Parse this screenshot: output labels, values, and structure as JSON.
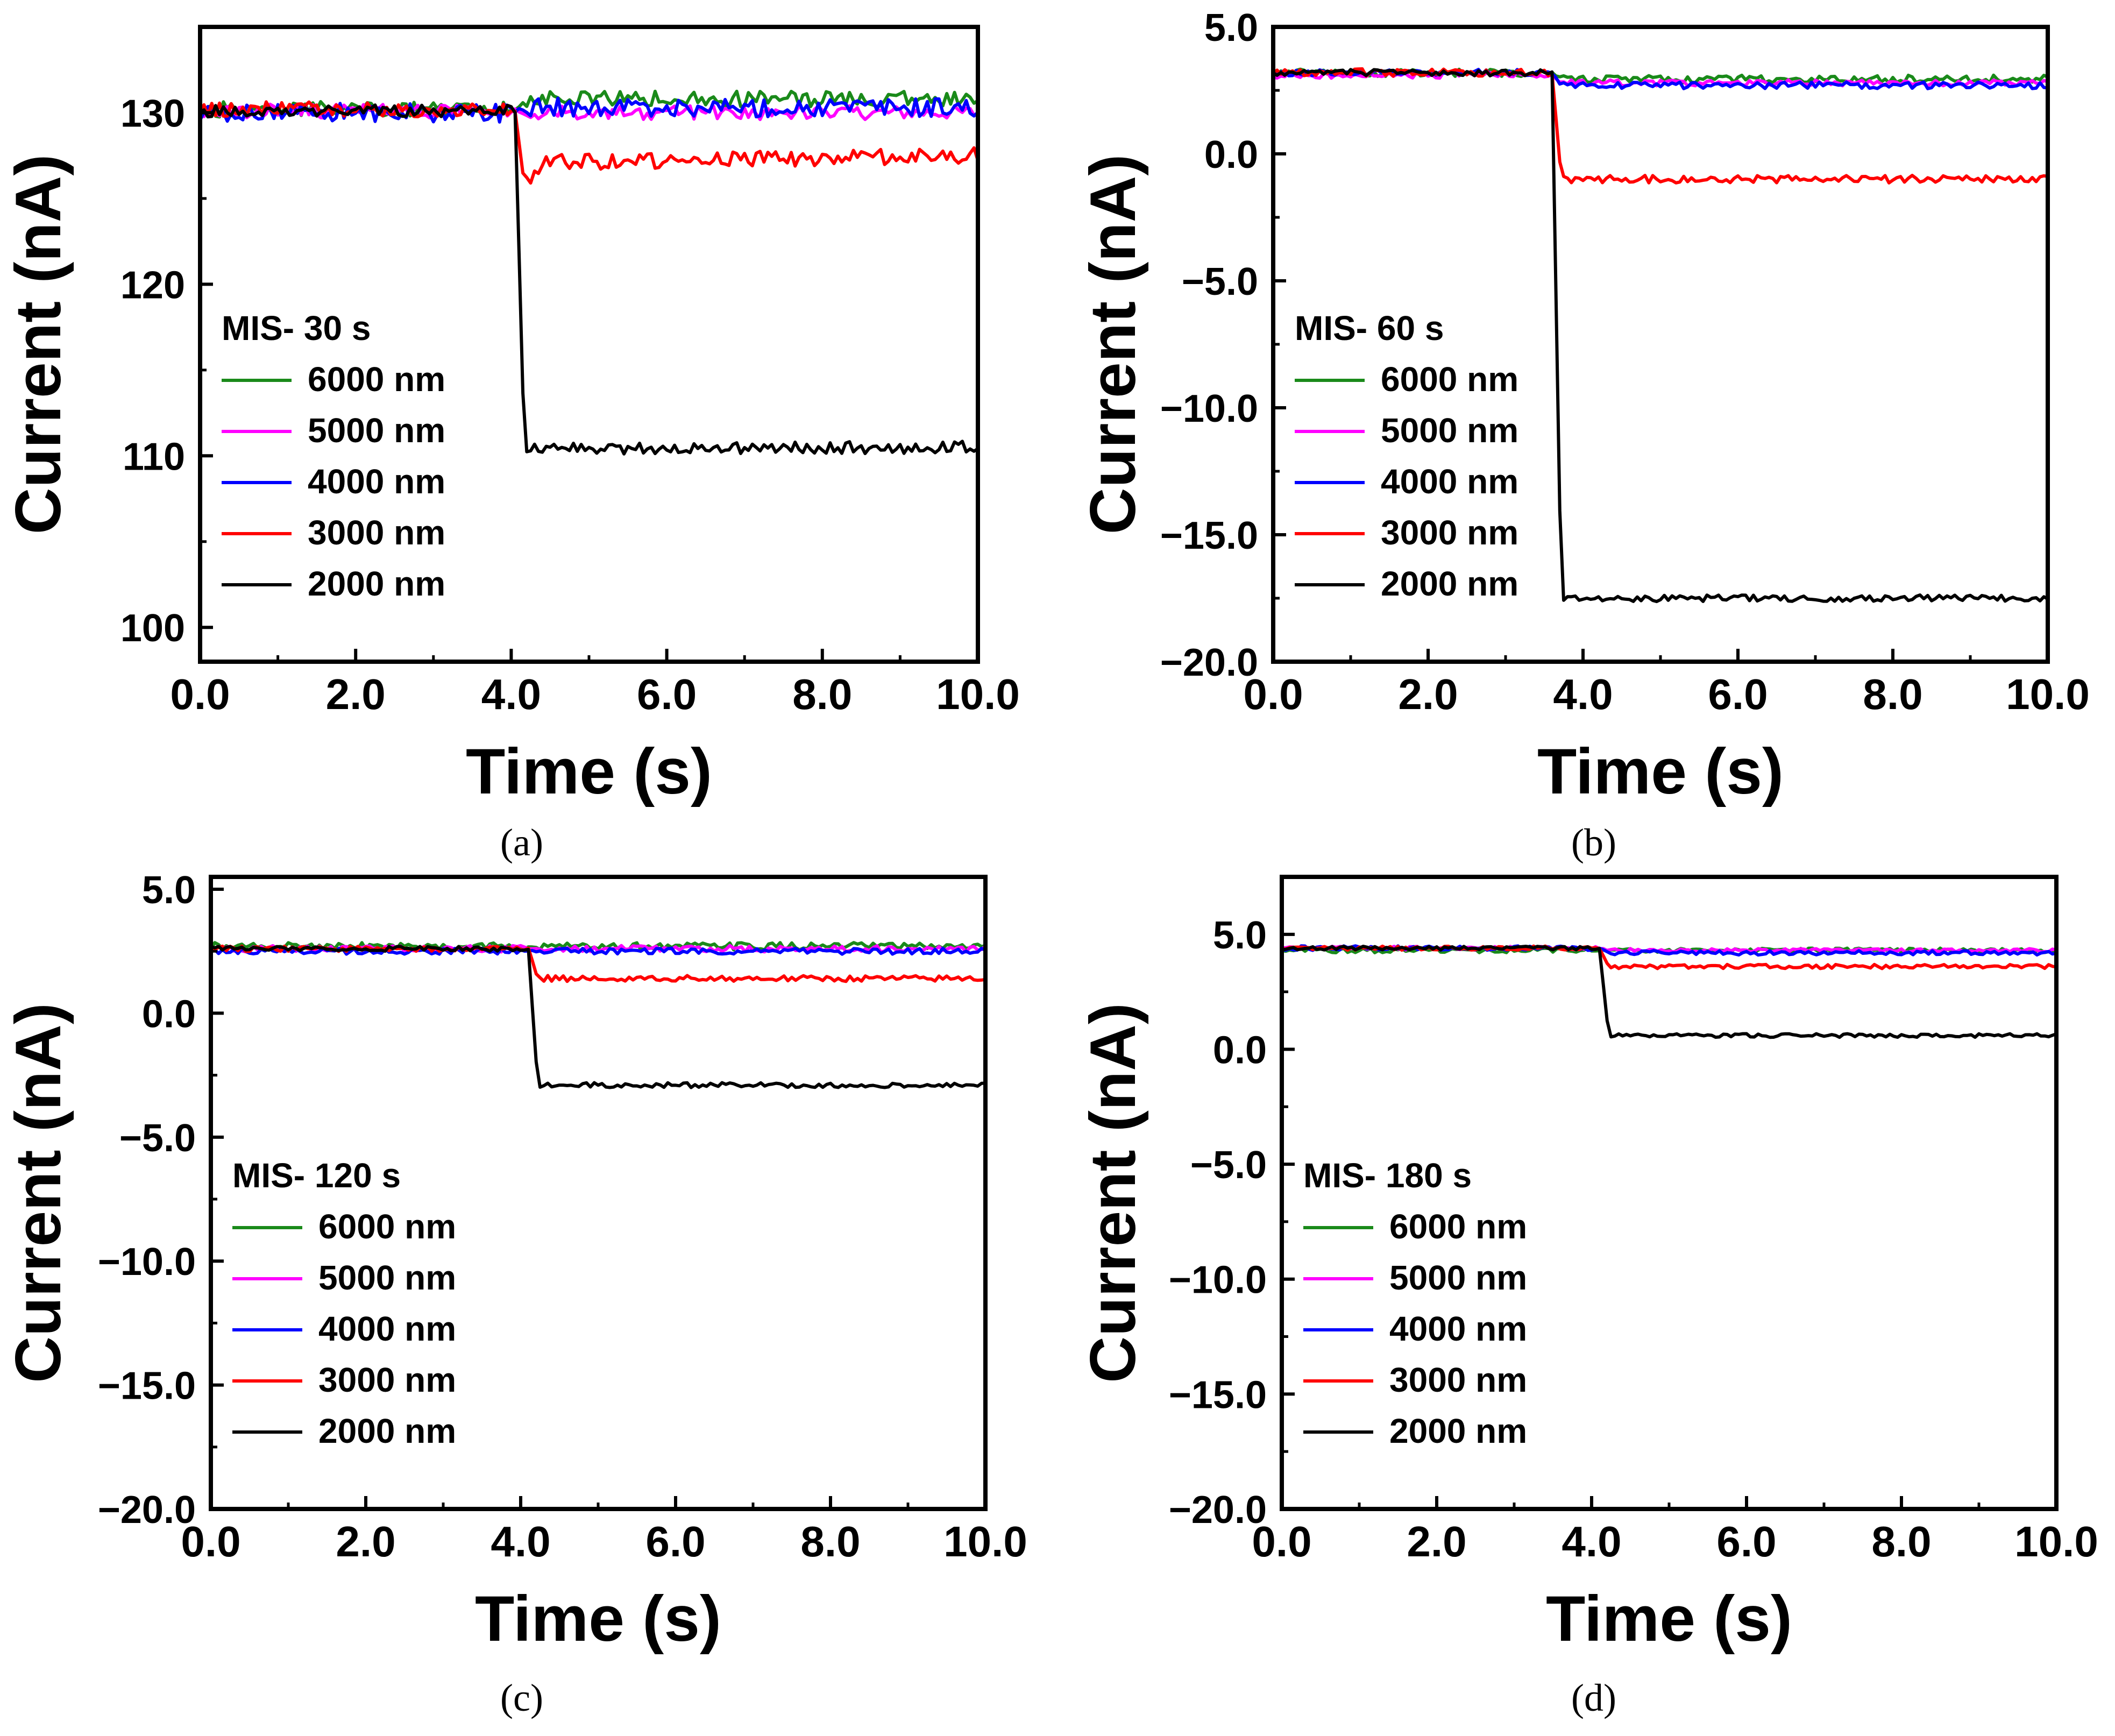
{
  "chart_data": [
    {
      "type": "line",
      "panel_label": "a",
      "xlabel": "Time (s)",
      "ylabel": "Current (nA)",
      "xlim": [
        0,
        10
      ],
      "ylim": [
        98,
        135
      ],
      "xticks": [
        0,
        2,
        4,
        6,
        8,
        10
      ],
      "xtick_labels": [
        "0.0",
        "2.0",
        "4.0",
        "6.0",
        "8.0",
        "10.0"
      ],
      "yticks": [
        100,
        110,
        120,
        130
      ],
      "ytick_labels": [
        "100",
        "110",
        "120",
        "130"
      ],
      "legend_title": "MIS- 30 s",
      "legend_location": "bottom-left",
      "step_time": 4.05,
      "series": [
        {
          "name": "6000 nm",
          "color": "#1a8a1a",
          "before": 130.2,
          "after": 130.8,
          "noise": 0.45,
          "seed": 11
        },
        {
          "name": "5000 nm",
          "color": "#ff00ff",
          "before": 130.1,
          "after": 130.0,
          "noise": 0.4,
          "seed": 23
        },
        {
          "name": "4000 nm",
          "color": "#0000ff",
          "before": 130.0,
          "after": 130.3,
          "noise": 0.55,
          "seed": 37
        },
        {
          "name": "3000 nm",
          "color": "#ff0000",
          "before": 130.2,
          "after": 127.1,
          "noise": 0.45,
          "seed": 41,
          "trend": 0.45,
          "dip": 125.8
        },
        {
          "name": "2000 nm",
          "color": "#000000",
          "before": 130.1,
          "after": 110.4,
          "noise": 0.35,
          "seed": 53,
          "trend": 0.12
        }
      ]
    },
    {
      "type": "line",
      "panel_label": "b",
      "xlabel": "Time (s)",
      "ylabel": "Current (nA)",
      "xlim": [
        0,
        10
      ],
      "ylim": [
        -20,
        5
      ],
      "xticks": [
        0,
        2,
        4,
        6,
        8,
        10
      ],
      "xtick_labels": [
        "0.0",
        "2.0",
        "4.0",
        "6.0",
        "8.0",
        "10.0"
      ],
      "yticks": [
        -20,
        -15,
        -10,
        -5,
        0,
        5
      ],
      "ytick_labels": [
        "−20.0",
        "−15.0",
        "−10.0",
        "−5.0",
        "0.0",
        "5.0"
      ],
      "legend_title": "MIS- 60 s",
      "legend_location": "bottom-left",
      "step_time": 3.6,
      "series": [
        {
          "name": "6000 nm",
          "color": "#1a8a1a",
          "before": 3.2,
          "after": 2.95,
          "noise": 0.15,
          "seed": 61
        },
        {
          "name": "5000 nm",
          "color": "#ff00ff",
          "before": 3.1,
          "after": 2.8,
          "noise": 0.12,
          "seed": 67
        },
        {
          "name": "4000 nm",
          "color": "#0000ff",
          "before": 3.2,
          "after": 2.7,
          "noise": 0.13,
          "seed": 71
        },
        {
          "name": "3000 nm",
          "color": "#ff0000",
          "before": 3.2,
          "after": -1.0,
          "noise": 0.15,
          "seed": 79
        },
        {
          "name": "2000 nm",
          "color": "#000000",
          "before": 3.2,
          "after": -17.5,
          "noise": 0.13,
          "seed": 83
        }
      ]
    },
    {
      "type": "line",
      "panel_label": "c",
      "xlabel": "Time (s)",
      "ylabel": "Current (nA)",
      "xlim": [
        0,
        10
      ],
      "ylim": [
        -20,
        5.5
      ],
      "xticks": [
        0,
        2,
        4,
        6,
        8,
        10
      ],
      "xtick_labels": [
        "0.0",
        "2.0",
        "4.0",
        "6.0",
        "8.0",
        "10.0"
      ],
      "yticks": [
        -20,
        -15,
        -10,
        -5,
        0,
        5
      ],
      "ytick_labels": [
        "−20.0",
        "−15.0",
        "−10.0",
        "−5.0",
        "0.0",
        "5.0"
      ],
      "legend_title": "MIS- 120 s",
      "legend_location": "bottom-left",
      "step_time": 4.1,
      "series": [
        {
          "name": "6000 nm",
          "color": "#1a8a1a",
          "before": 2.7,
          "after": 2.7,
          "noise": 0.15,
          "seed": 89
        },
        {
          "name": "5000 nm",
          "color": "#ff00ff",
          "before": 2.6,
          "after": 2.6,
          "noise": 0.13,
          "seed": 97
        },
        {
          "name": "4000 nm",
          "color": "#0000ff",
          "before": 2.5,
          "after": 2.5,
          "noise": 0.12,
          "seed": 101
        },
        {
          "name": "3000 nm",
          "color": "#ff0000",
          "before": 2.6,
          "after": 1.4,
          "noise": 0.12,
          "seed": 103
        },
        {
          "name": "2000 nm",
          "color": "#000000",
          "before": 2.6,
          "after": -2.9,
          "noise": 0.1,
          "seed": 107
        }
      ]
    },
    {
      "type": "line",
      "panel_label": "d",
      "xlabel": "Time (s)",
      "ylabel": "Current (nA)",
      "xlim": [
        0,
        10
      ],
      "ylim": [
        -20,
        7.5
      ],
      "xticks": [
        0,
        2,
        4,
        6,
        8,
        10
      ],
      "xtick_labels": [
        "0.0",
        "2.0",
        "4.0",
        "6.0",
        "8.0",
        "10.0"
      ],
      "yticks": [
        -20,
        -15,
        -10,
        -5,
        0,
        5
      ],
      "ytick_labels": [
        "−20.0",
        "−15.0",
        "−10.0",
        "−5.0",
        "0.0",
        "5.0"
      ],
      "legend_title": "MIS- 180 s",
      "legend_location": "bottom-left",
      "step_time": 4.1,
      "series": [
        {
          "name": "6000 nm",
          "color": "#1a8a1a",
          "before": 4.3,
          "after": 4.3,
          "noise": 0.1,
          "seed": 109
        },
        {
          "name": "5000 nm",
          "color": "#ff00ff",
          "before": 4.4,
          "after": 4.3,
          "noise": 0.08,
          "seed": 113
        },
        {
          "name": "4000 nm",
          "color": "#0000ff",
          "before": 4.4,
          "after": 4.2,
          "noise": 0.1,
          "seed": 127
        },
        {
          "name": "3000 nm",
          "color": "#ff0000",
          "before": 4.4,
          "after": 3.6,
          "noise": 0.09,
          "seed": 131
        },
        {
          "name": "2000 nm",
          "color": "#000000",
          "before": 4.4,
          "after": 0.6,
          "noise": 0.08,
          "seed": 137
        }
      ]
    }
  ]
}
